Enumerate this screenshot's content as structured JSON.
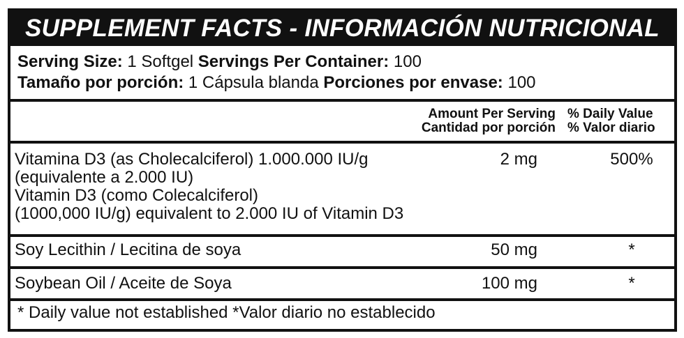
{
  "title": "SUPPLEMENT FACTS - INFORMACIÓN NUTRICIONAL",
  "serving": {
    "en": {
      "size_label": "Serving Size:",
      "size_value": "1 Softgel",
      "per_container_label": "Servings Per Container:",
      "per_container_value": "100"
    },
    "es": {
      "size_label": "Tamaño por porción:",
      "size_value": "1 Cápsula blanda",
      "per_container_label": "Porciones por envase:",
      "per_container_value": "100"
    }
  },
  "header": {
    "amount_en": "Amount Per Serving",
    "amount_es": "Cantidad por porción",
    "dv_en": "% Daily Value",
    "dv_es": "% Valor diario"
  },
  "rows": [
    {
      "lines": [
        "Vitamina D3 (as Cholecalciferol) 1.000.000 IU/g",
        "(equivalente a 2.000 IU)",
        "Vitamin D3 (como Colecalciferol)",
        "(1000,000 IU/g) equivalent to 2.000 IU of Vitamin D3"
      ],
      "amount": "2 mg",
      "dv": "500%"
    },
    {
      "lines": [
        "Soy Lecithin / Lecitina de soya"
      ],
      "amount": "50 mg",
      "dv": "*"
    },
    {
      "lines": [
        "Soybean Oil / Aceite de Soya"
      ],
      "amount": "100 mg",
      "dv": "*"
    }
  ],
  "footnote": "* Daily value not established *Valor diario no establecido"
}
